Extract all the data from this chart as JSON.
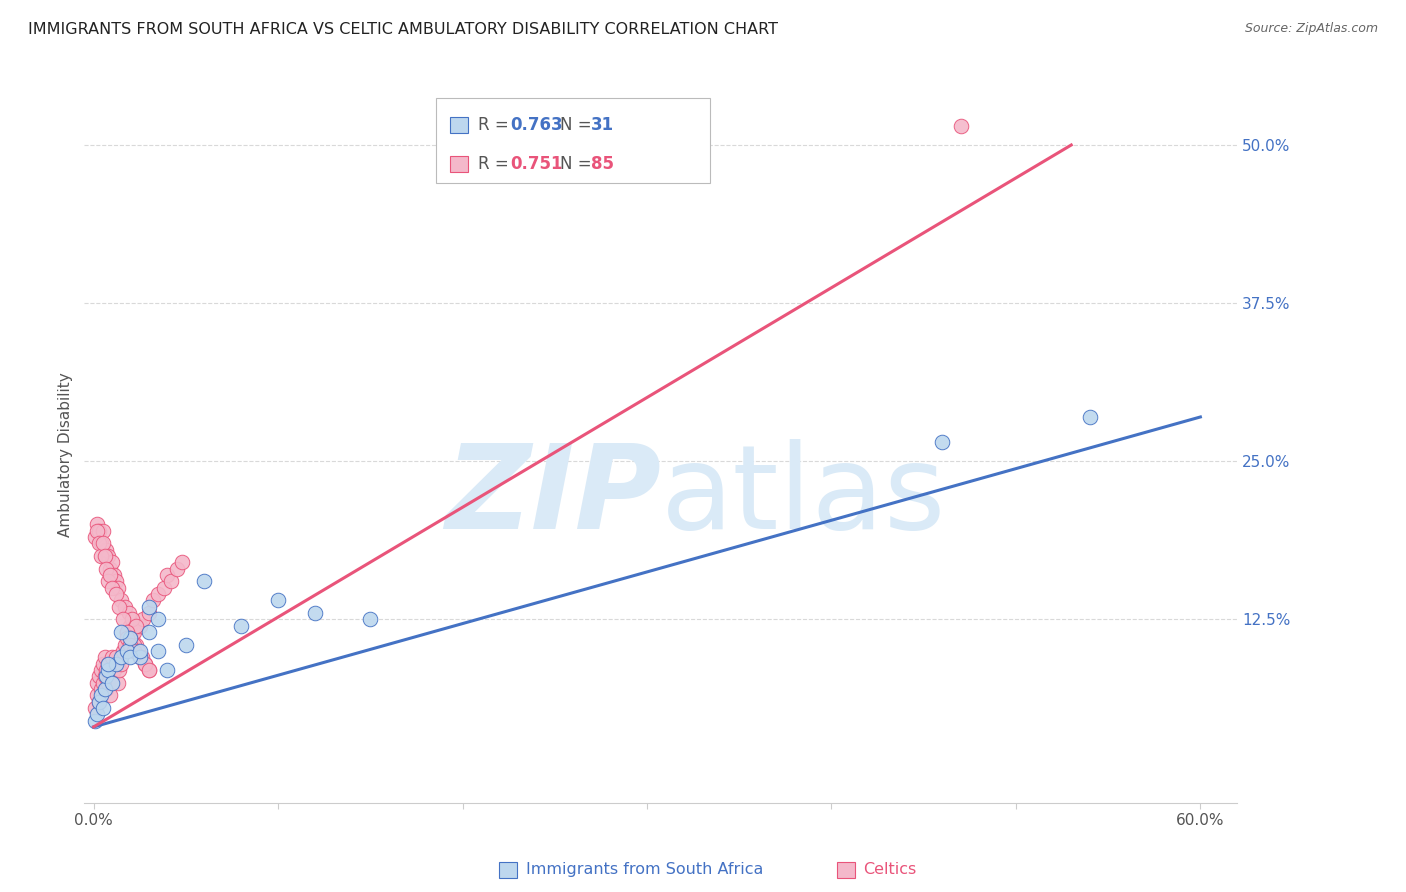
{
  "title": "IMMIGRANTS FROM SOUTH AFRICA VS CELTIC AMBULATORY DISABILITY CORRELATION CHART",
  "source": "Source: ZipAtlas.com",
  "ylabel_left": "Ambulatory Disability",
  "ylabel_right_ticks": [
    "12.5%",
    "25.0%",
    "37.5%",
    "50.0%"
  ],
  "ylabel_right_vals": [
    0.125,
    0.25,
    0.375,
    0.5
  ],
  "xtick_labels": [
    "0.0%",
    "",
    "",
    "",
    "",
    "",
    "60.0%"
  ],
  "xtick_vals": [
    0.0,
    0.1,
    0.2,
    0.3,
    0.4,
    0.5,
    0.6
  ],
  "xlim": [
    -0.005,
    0.62
  ],
  "ylim": [
    -0.02,
    0.53
  ],
  "blue_scatter_x": [
    0.001,
    0.002,
    0.003,
    0.004,
    0.005,
    0.006,
    0.007,
    0.008,
    0.01,
    0.012,
    0.015,
    0.018,
    0.02,
    0.025,
    0.03,
    0.035,
    0.04,
    0.05,
    0.06,
    0.08,
    0.1,
    0.12,
    0.15,
    0.03,
    0.035,
    0.015,
    0.02,
    0.025,
    0.008,
    0.46,
    0.54
  ],
  "blue_scatter_y": [
    0.045,
    0.05,
    0.06,
    0.065,
    0.055,
    0.07,
    0.08,
    0.085,
    0.075,
    0.09,
    0.095,
    0.1,
    0.11,
    0.095,
    0.115,
    0.125,
    0.085,
    0.105,
    0.155,
    0.12,
    0.14,
    0.13,
    0.125,
    0.135,
    0.1,
    0.115,
    0.095,
    0.1,
    0.09,
    0.265,
    0.285
  ],
  "pink_scatter_x": [
    0.001,
    0.002,
    0.002,
    0.003,
    0.003,
    0.004,
    0.004,
    0.005,
    0.005,
    0.006,
    0.006,
    0.007,
    0.007,
    0.008,
    0.008,
    0.009,
    0.01,
    0.01,
    0.011,
    0.012,
    0.013,
    0.014,
    0.015,
    0.016,
    0.017,
    0.018,
    0.02,
    0.021,
    0.022,
    0.023,
    0.025,
    0.027,
    0.03,
    0.032,
    0.035,
    0.038,
    0.04,
    0.042,
    0.045,
    0.048,
    0.001,
    0.002,
    0.003,
    0.004,
    0.005,
    0.006,
    0.007,
    0.008,
    0.009,
    0.01,
    0.011,
    0.012,
    0.013,
    0.015,
    0.017,
    0.019,
    0.021,
    0.023,
    0.002,
    0.003,
    0.004,
    0.005,
    0.006,
    0.007,
    0.008,
    0.009,
    0.01,
    0.012,
    0.014,
    0.016,
    0.018,
    0.02,
    0.022,
    0.024,
    0.026,
    0.028,
    0.03,
    0.018,
    0.02,
    0.022,
    0.025,
    0.028,
    0.03,
    0.47
  ],
  "pink_scatter_y": [
    0.055,
    0.065,
    0.075,
    0.06,
    0.08,
    0.07,
    0.085,
    0.075,
    0.09,
    0.08,
    0.095,
    0.07,
    0.085,
    0.075,
    0.09,
    0.065,
    0.08,
    0.095,
    0.085,
    0.095,
    0.075,
    0.085,
    0.09,
    0.1,
    0.105,
    0.115,
    0.12,
    0.11,
    0.115,
    0.105,
    0.12,
    0.125,
    0.13,
    0.14,
    0.145,
    0.15,
    0.16,
    0.155,
    0.165,
    0.17,
    0.19,
    0.2,
    0.195,
    0.185,
    0.195,
    0.175,
    0.18,
    0.175,
    0.165,
    0.17,
    0.16,
    0.155,
    0.15,
    0.14,
    0.135,
    0.13,
    0.125,
    0.12,
    0.195,
    0.185,
    0.175,
    0.185,
    0.175,
    0.165,
    0.155,
    0.16,
    0.15,
    0.145,
    0.135,
    0.125,
    0.115,
    0.11,
    0.105,
    0.1,
    0.095,
    0.09,
    0.085,
    0.11,
    0.105,
    0.1,
    0.095,
    0.09,
    0.085,
    0.515
  ],
  "blue_line_x": [
    0.0,
    0.6
  ],
  "blue_line_y": [
    0.04,
    0.285
  ],
  "pink_line_x": [
    0.0,
    0.53
  ],
  "pink_line_y": [
    0.04,
    0.5
  ],
  "blue_color": "#4472C4",
  "pink_color": "#E9547A",
  "blue_scatter_color": "#BDD7EE",
  "pink_scatter_color": "#F4B8CA",
  "grid_color": "#D9D9D9",
  "watermark_color": "#DAEAF7",
  "background_color": "#FFFFFF",
  "title_fontsize": 11.5,
  "tick_fontsize": 11,
  "right_tick_color": "#4472C4"
}
